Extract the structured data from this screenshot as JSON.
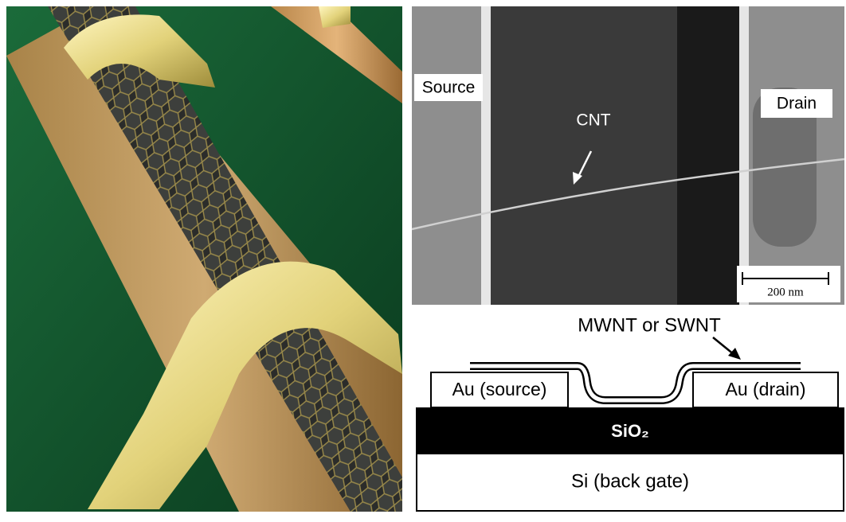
{
  "sem_image": {
    "source_label": "Source",
    "drain_label": "Drain",
    "tube_label": "CNT",
    "scale_bar": "200 nm"
  },
  "schematic": {
    "tube_label": "MWNT or SWNT",
    "source": "Au (source)",
    "drain": "Au (drain)",
    "oxide": "SiO₂",
    "gate": "Si (back gate)"
  }
}
